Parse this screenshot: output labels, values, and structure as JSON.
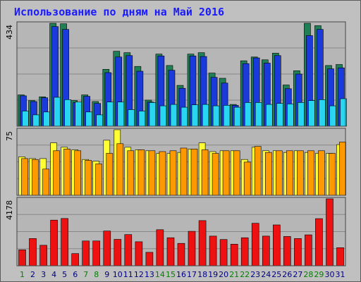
{
  "chart_data": [
    {
      "type": "bar",
      "title": "Использование по дням на Май 2016",
      "panel": "top",
      "y_max_label": "434",
      "y_max": 434,
      "categories": [
        "1",
        "2",
        "3",
        "4",
        "5",
        "6",
        "7",
        "8",
        "9",
        "10",
        "11",
        "12",
        "13",
        "14",
        "15",
        "16",
        "17",
        "18",
        "19",
        "20",
        "21",
        "22",
        "23",
        "24",
        "25",
        "26",
        "27",
        "28",
        "29",
        "30",
        "31"
      ],
      "series": [
        {
          "color": "#1f7f55",
          "values": [
            132,
            108,
            124,
            434,
            432,
            108,
            132,
            104,
            240,
            316,
            310,
            252,
            110,
            304,
            256,
            172,
            304,
            310,
            224,
            202,
            92,
            276,
            292,
            280,
            308,
            174,
            234,
            434,
            424,
            256,
            260
          ]
        },
        {
          "color": "#1a3adc",
          "values": [
            128,
            104,
            120,
            420,
            408,
            100,
            126,
            96,
            226,
            292,
            298,
            232,
            102,
            296,
            236,
            160,
            296,
            294,
            206,
            182,
            88,
            264,
            288,
            266,
            298,
            158,
            220,
            382,
            408,
            242,
            246
          ]
        },
        {
          "color": "#29d6f2",
          "values": [
            64,
            48,
            60,
            122,
            112,
            102,
            60,
            48,
            102,
            102,
            70,
            64,
            100,
            86,
            92,
            80,
            90,
            92,
            86,
            88,
            80,
            100,
            100,
            92,
            96,
            94,
            100,
            108,
            112,
            86,
            116
          ]
        }
      ],
      "grid": true
    },
    {
      "type": "bar",
      "panel": "middle",
      "y_max_label": "75",
      "y_max": 75,
      "series": [
        {
          "color": "#ffff33",
          "values": [
            44,
            42,
            42,
            60,
            55,
            52,
            41,
            39,
            63,
            75,
            55,
            52,
            51,
            48,
            48,
            49,
            53,
            60,
            50,
            51,
            51,
            41,
            55,
            51,
            51,
            49,
            51,
            49,
            48,
            48,
            58
          ]
        },
        {
          "color": "#ff9900",
          "values": [
            42,
            41,
            30,
            51,
            53,
            51,
            40,
            36,
            48,
            59,
            51,
            52,
            51,
            50,
            51,
            54,
            53,
            52,
            48,
            51,
            51,
            38,
            56,
            49,
            51,
            51,
            51,
            51,
            51,
            48,
            61
          ]
        }
      ],
      "grid": true
    },
    {
      "type": "bar",
      "panel": "bottom",
      "y_max_label": "4178",
      "y_max": 4178,
      "series": [
        {
          "color": "#ee1111",
          "values": [
            1000,
            1700,
            1280,
            2850,
            2950,
            760,
            1550,
            1550,
            2170,
            1650,
            1950,
            1500,
            840,
            2250,
            1750,
            1400,
            2150,
            2820,
            1850,
            1640,
            1350,
            1750,
            2650,
            1850,
            2550,
            1830,
            1700,
            1930,
            2940,
            4178,
            1130
          ]
        }
      ],
      "grid": true
    }
  ],
  "colors": {
    "frame_bg": "#c0c0c0",
    "panel_bg": "#b6b6b6",
    "grid": "#888888",
    "x_label_weekday": "#000080",
    "x_label_weekend": "#008000"
  }
}
